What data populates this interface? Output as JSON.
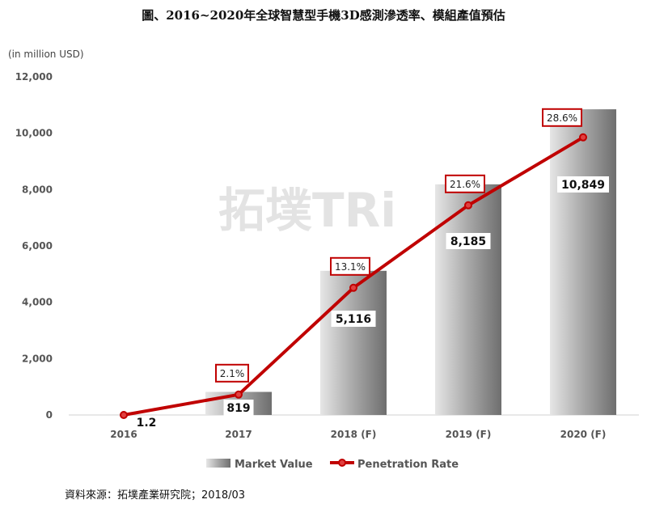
{
  "title": "圖、2016~2020年全球智慧型手機3D感測滲透率、模組產值預估",
  "unit_label": "(in million USD)",
  "source": "資料來源：拓墣產業研究院；2018/03",
  "watermark": "拓墣TRi",
  "chart_data": {
    "type": "bar",
    "categories": [
      "2016",
      "2017",
      "2018 (F)",
      "2019 (F)",
      "2020 (F)"
    ],
    "ylim": [
      0,
      12000
    ],
    "yticks": [
      "0",
      "2,000",
      "4,000",
      "6,000",
      "8,000",
      "10,000",
      "12,000"
    ],
    "ylabel": "(in million USD)",
    "grid": false,
    "legend_position": "bottom",
    "series": [
      {
        "name": "Market Value",
        "type": "bar",
        "values": [
          1.2,
          819,
          5116,
          8185,
          10849
        ],
        "labels": [
          "1.2",
          "819",
          "5,116",
          "8,185",
          "10,849"
        ],
        "color": "#8c8c8c"
      },
      {
        "name": "Penetration Rate",
        "type": "line",
        "values": [
          0,
          2.1,
          13.1,
          21.6,
          28.6
        ],
        "labels": [
          "",
          "2.1%",
          "13.1%",
          "21.6%",
          "28.6%"
        ],
        "color": "#c00000"
      }
    ]
  }
}
